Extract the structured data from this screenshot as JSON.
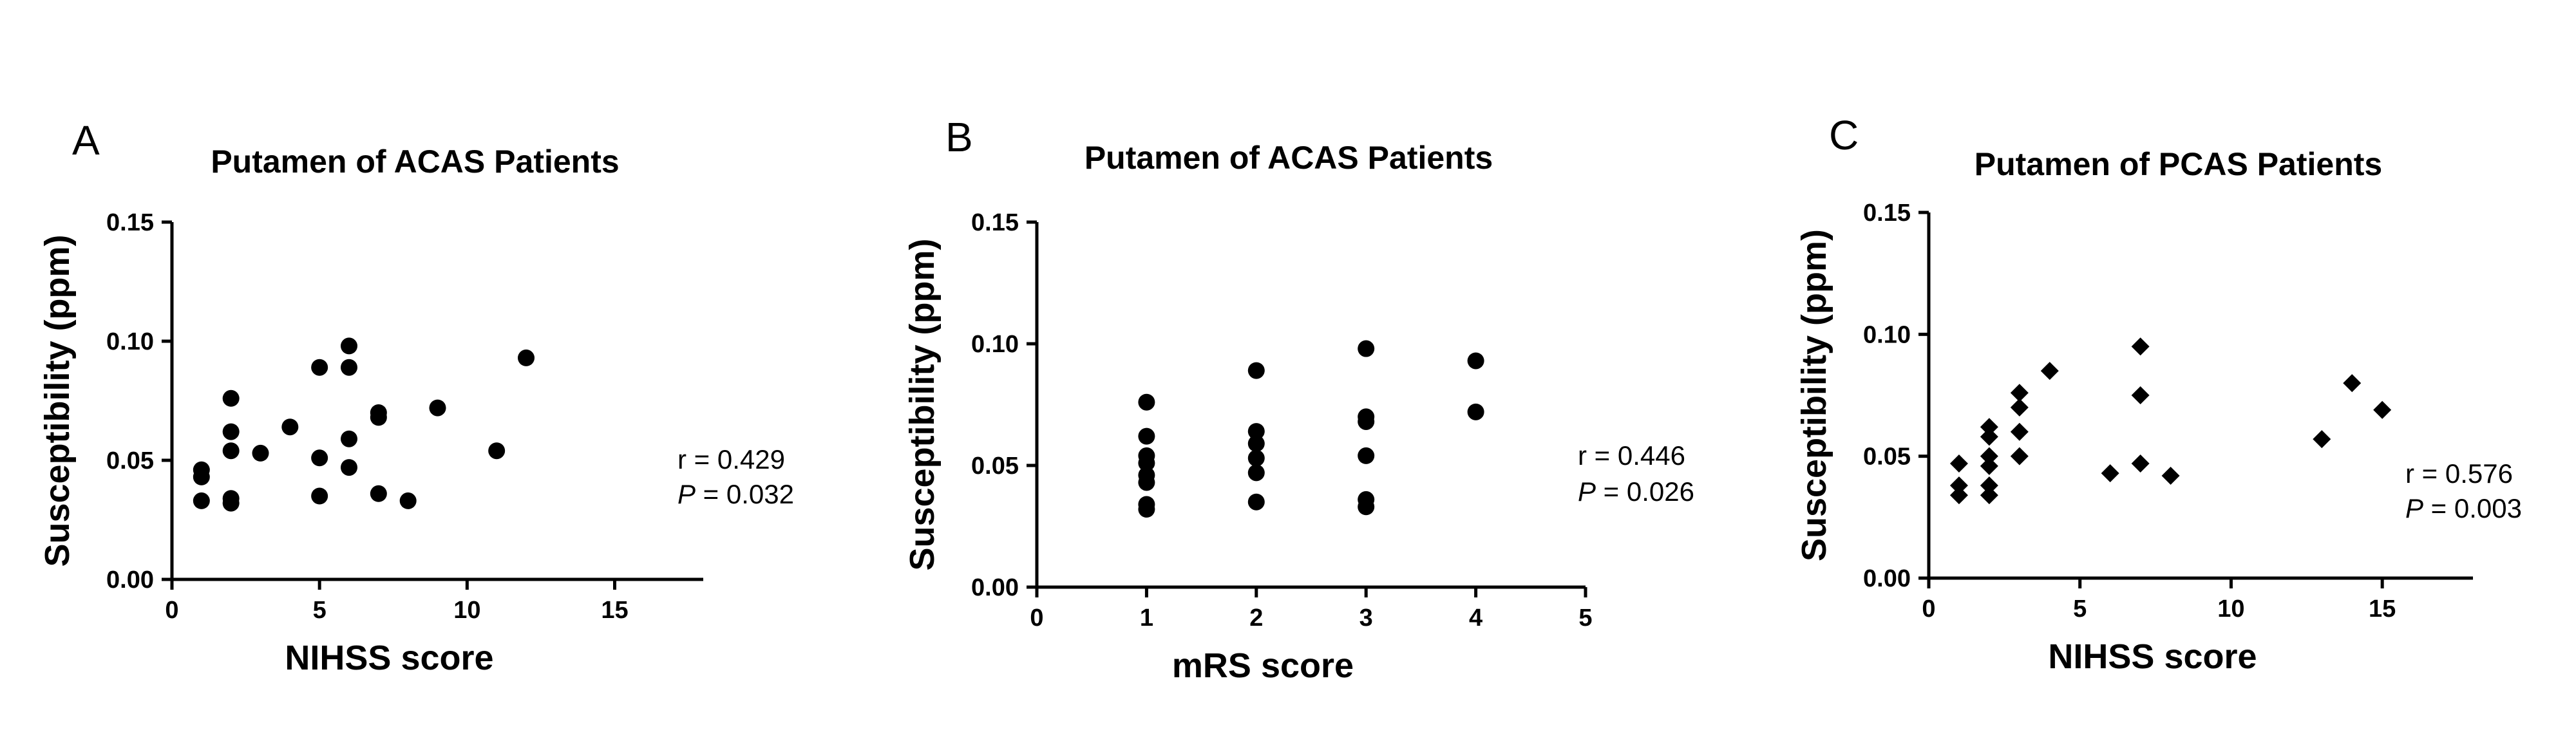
{
  "chart_data": [
    {
      "type": "scatter",
      "panel_label": "A",
      "title": "Putamen of ACAS Patients",
      "xlabel": "NIHSS score",
      "ylabel": "Susceptibility (ppm)",
      "xlim": [
        0,
        18
      ],
      "ylim": [
        0,
        0.15
      ],
      "xticks": [
        0,
        5,
        10,
        15
      ],
      "yticks": [
        0.0,
        0.05,
        0.1,
        0.15
      ],
      "xtick_labels": [
        "0",
        "5",
        "10",
        "15"
      ],
      "ytick_labels": [
        "0.00",
        "0.05",
        "0.10",
        "0.15"
      ],
      "marker": "circle",
      "annotation_r": "r = 0.429",
      "annotation_p_symbol": "P",
      "annotation_p_value": " = 0.032",
      "grid": false,
      "points": [
        {
          "x": 1,
          "y": 0.046
        },
        {
          "x": 1,
          "y": 0.043
        },
        {
          "x": 1,
          "y": 0.033
        },
        {
          "x": 2,
          "y": 0.076
        },
        {
          "x": 2,
          "y": 0.062
        },
        {
          "x": 2,
          "y": 0.054
        },
        {
          "x": 2,
          "y": 0.034
        },
        {
          "x": 2,
          "y": 0.032
        },
        {
          "x": 3,
          "y": 0.053
        },
        {
          "x": 4,
          "y": 0.064
        },
        {
          "x": 5,
          "y": 0.089
        },
        {
          "x": 5,
          "y": 0.051
        },
        {
          "x": 5,
          "y": 0.035
        },
        {
          "x": 6,
          "y": 0.098
        },
        {
          "x": 6,
          "y": 0.089
        },
        {
          "x": 6,
          "y": 0.059
        },
        {
          "x": 6,
          "y": 0.047
        },
        {
          "x": 7,
          "y": 0.07
        },
        {
          "x": 7,
          "y": 0.068
        },
        {
          "x": 7,
          "y": 0.036
        },
        {
          "x": 8,
          "y": 0.033
        },
        {
          "x": 9,
          "y": 0.072
        },
        {
          "x": 11,
          "y": 0.054
        },
        {
          "x": 12,
          "y": 0.093
        }
      ]
    },
    {
      "type": "scatter",
      "panel_label": "B",
      "title": "Putamen of ACAS Patients",
      "xlabel": "mRS score",
      "ylabel": "Susceptibility (ppm)",
      "xlim": [
        0,
        5
      ],
      "ylim": [
        0,
        0.15
      ],
      "xticks": [
        0,
        1,
        2,
        3,
        4,
        5
      ],
      "yticks": [
        0.0,
        0.05,
        0.1,
        0.15
      ],
      "xtick_labels": [
        "0",
        "1",
        "2",
        "3",
        "4",
        "5"
      ],
      "ytick_labels": [
        "0.00",
        "0.05",
        "0.10",
        "0.15"
      ],
      "marker": "circle",
      "annotation_r": "r = 0.446",
      "annotation_p_symbol": "P",
      "annotation_p_value": " = 0.026",
      "grid": false,
      "points": [
        {
          "x": 1,
          "y": 0.076
        },
        {
          "x": 1,
          "y": 0.062
        },
        {
          "x": 1,
          "y": 0.054
        },
        {
          "x": 1,
          "y": 0.051
        },
        {
          "x": 1,
          "y": 0.046
        },
        {
          "x": 1,
          "y": 0.043
        },
        {
          "x": 1,
          "y": 0.034
        },
        {
          "x": 1,
          "y": 0.032
        },
        {
          "x": 2,
          "y": 0.089
        },
        {
          "x": 2,
          "y": 0.064
        },
        {
          "x": 2,
          "y": 0.059
        },
        {
          "x": 2,
          "y": 0.053
        },
        {
          "x": 2,
          "y": 0.047
        },
        {
          "x": 2,
          "y": 0.035
        },
        {
          "x": 3,
          "y": 0.098
        },
        {
          "x": 3,
          "y": 0.07
        },
        {
          "x": 3,
          "y": 0.068
        },
        {
          "x": 3,
          "y": 0.054
        },
        {
          "x": 3,
          "y": 0.036
        },
        {
          "x": 3,
          "y": 0.033
        },
        {
          "x": 4,
          "y": 0.093
        },
        {
          "x": 4,
          "y": 0.072
        }
      ]
    },
    {
      "type": "scatter",
      "panel_label": "C",
      "title": "Putamen of PCAS Patients",
      "xlabel": "NIHSS score",
      "ylabel": "Susceptibility (ppm)",
      "xlim": [
        0,
        18
      ],
      "ylim": [
        0,
        0.15
      ],
      "xticks": [
        0,
        5,
        10,
        15
      ],
      "yticks": [
        0.0,
        0.05,
        0.1,
        0.15
      ],
      "xtick_labels": [
        "0",
        "5",
        "10",
        "15"
      ],
      "ytick_labels": [
        "0.00",
        "0.05",
        "0.10",
        "0.15"
      ],
      "marker": "diamond",
      "annotation_r": "r = 0.576",
      "annotation_p_symbol": "P",
      "annotation_p_value": " = 0.003",
      "grid": false,
      "points": [
        {
          "x": 1,
          "y": 0.047
        },
        {
          "x": 1,
          "y": 0.038
        },
        {
          "x": 1,
          "y": 0.034
        },
        {
          "x": 2,
          "y": 0.062
        },
        {
          "x": 2,
          "y": 0.058
        },
        {
          "x": 2,
          "y": 0.05
        },
        {
          "x": 2,
          "y": 0.046
        },
        {
          "x": 2,
          "y": 0.038
        },
        {
          "x": 2,
          "y": 0.034
        },
        {
          "x": 3,
          "y": 0.076
        },
        {
          "x": 3,
          "y": 0.07
        },
        {
          "x": 3,
          "y": 0.06
        },
        {
          "x": 3,
          "y": 0.05
        },
        {
          "x": 4,
          "y": 0.085
        },
        {
          "x": 6,
          "y": 0.043
        },
        {
          "x": 7,
          "y": 0.095
        },
        {
          "x": 7,
          "y": 0.075
        },
        {
          "x": 7,
          "y": 0.047
        },
        {
          "x": 8,
          "y": 0.042
        },
        {
          "x": 13,
          "y": 0.057
        },
        {
          "x": 14,
          "y": 0.08
        },
        {
          "x": 15,
          "y": 0.069
        }
      ]
    }
  ]
}
